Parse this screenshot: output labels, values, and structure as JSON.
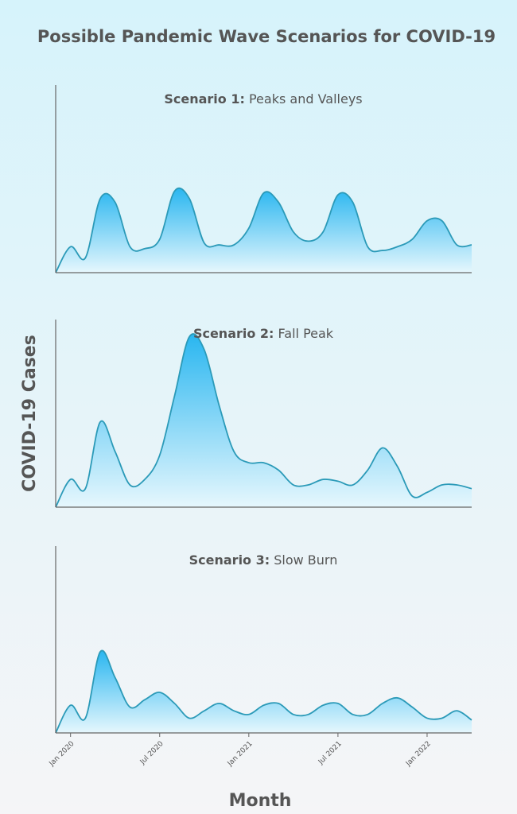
{
  "title": "Possible Pandemic Wave Scenarios for COVID-19",
  "ylabel": "COVID-19 Cases",
  "xlabel": "Month",
  "chart_data": [
    {
      "type": "area",
      "title_bold": "Scenario 1:",
      "title": "Peaks and Valleys",
      "color": "#2b9ab8",
      "x": [
        "2019-12",
        "2020-01",
        "2020-02",
        "2020-03",
        "2020-04",
        "2020-05",
        "2020-06",
        "2020-07",
        "2020-08",
        "2020-09",
        "2020-10",
        "2020-11",
        "2020-12",
        "2021-01",
        "2021-02",
        "2021-03",
        "2021-04",
        "2021-05",
        "2021-06",
        "2021-07",
        "2021-08",
        "2021-09",
        "2021-10",
        "2021-11",
        "2021-12",
        "2022-01",
        "2022-02",
        "2022-03",
        "2022-04"
      ],
      "values": [
        0,
        14,
        8,
        40,
        38,
        14,
        13,
        18,
        44,
        40,
        16,
        15,
        15,
        24,
        43,
        38,
        22,
        17,
        22,
        42,
        38,
        14,
        12,
        14,
        18,
        28,
        28,
        15,
        15
      ],
      "xlim": [
        "2019-12",
        "2022-04"
      ],
      "ylim": [
        0,
        100
      ]
    },
    {
      "type": "area",
      "title_bold": "Scenario 2:",
      "title": "Fall Peak",
      "color": "#2b9ab8",
      "x": [
        "2019-12",
        "2020-01",
        "2020-02",
        "2020-03",
        "2020-04",
        "2020-05",
        "2020-06",
        "2020-07",
        "2020-08",
        "2020-09",
        "2020-10",
        "2020-11",
        "2020-12",
        "2021-01",
        "2021-02",
        "2021-03",
        "2021-04",
        "2021-05",
        "2021-06",
        "2021-07",
        "2021-08",
        "2021-09",
        "2021-10",
        "2021-11",
        "2021-12",
        "2022-01",
        "2022-02",
        "2022-03",
        "2022-04"
      ],
      "values": [
        0,
        15,
        10,
        46,
        30,
        12,
        15,
        28,
        60,
        92,
        85,
        55,
        30,
        24,
        24,
        20,
        12,
        12,
        15,
        14,
        12,
        20,
        32,
        22,
        6,
        8,
        12,
        12,
        10
      ],
      "xlim": [
        "2019-12",
        "2022-04"
      ],
      "ylim": [
        0,
        100
      ]
    },
    {
      "type": "area",
      "title_bold": "Scenario 3:",
      "title": "Slow Burn",
      "color": "#2b9ab8",
      "x": [
        "2019-12",
        "2020-01",
        "2020-02",
        "2020-03",
        "2020-04",
        "2020-05",
        "2020-06",
        "2020-07",
        "2020-08",
        "2020-09",
        "2020-10",
        "2020-11",
        "2020-12",
        "2021-01",
        "2021-02",
        "2021-03",
        "2021-04",
        "2021-05",
        "2021-06",
        "2021-07",
        "2021-08",
        "2021-09",
        "2021-10",
        "2021-11",
        "2021-12",
        "2022-01",
        "2022-02",
        "2022-03",
        "2022-04"
      ],
      "values": [
        0,
        15,
        8,
        44,
        30,
        14,
        18,
        22,
        16,
        8,
        12,
        16,
        12,
        10,
        15,
        16,
        10,
        10,
        15,
        16,
        10,
        10,
        16,
        19,
        14,
        8,
        8,
        12,
        7
      ],
      "xlim": [
        "2019-12",
        "2022-04"
      ],
      "ylim": [
        0,
        100
      ],
      "xticks": [
        {
          "value": "2020-01",
          "label": "Jan 2020"
        },
        {
          "value": "2020-07",
          "label": "Jul 2020"
        },
        {
          "value": "2021-01",
          "label": "Jan 2021"
        },
        {
          "value": "2021-07",
          "label": "Jul 2021"
        },
        {
          "value": "2022-01",
          "label": "Jan 2022"
        }
      ]
    }
  ]
}
